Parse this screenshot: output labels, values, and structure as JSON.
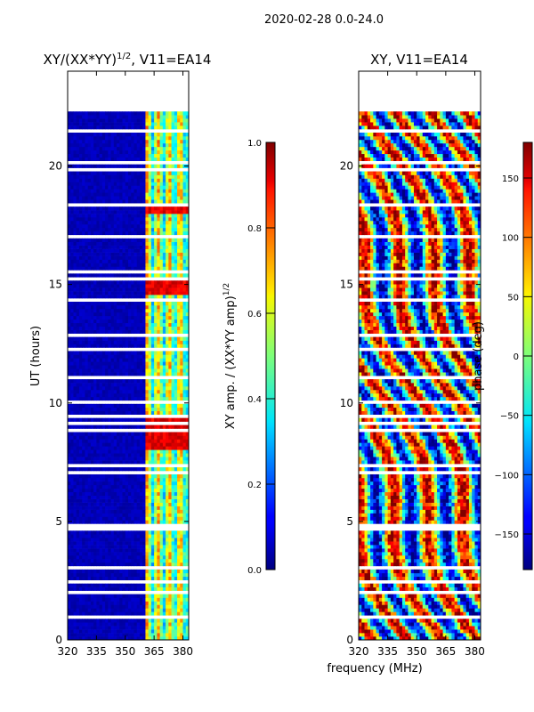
{
  "figure": {
    "suptitle": "2020-02-28 0.0-24.0",
    "shared_xlabel": "frequency (MHz)"
  },
  "chart_data": [
    {
      "type": "heatmap",
      "title_main": "XY/(XX*YY)",
      "title_sup": "1/2",
      "title_tail": ", V11=EA14",
      "xlabel": "",
      "ylabel": "UT (hours)",
      "xlim": [
        320,
        383
      ],
      "ylim": [
        0,
        24
      ],
      "xticks": [
        320,
        335,
        350,
        365,
        380
      ],
      "yticks": [
        0,
        5,
        10,
        15,
        20
      ],
      "data_time_range": [
        0,
        22.3
      ],
      "colorbar": {
        "label_main": "XY amp. / (XX*YY amp)",
        "label_sup": "1/2",
        "range": [
          0.0,
          1.0
        ],
        "ticks": [
          "0.0",
          "0.2",
          "0.4",
          "0.6",
          "0.8",
          "1.0"
        ],
        "colormap": "jet"
      }
    },
    {
      "type": "heatmap",
      "title": "XY, V11=EA14",
      "xlabel": "frequency (MHz)",
      "ylabel": "",
      "xlim": [
        320,
        383
      ],
      "ylim": [
        0,
        24
      ],
      "xticks": [
        320,
        335,
        350,
        365,
        380
      ],
      "yticks": [
        0,
        5,
        10,
        15,
        20
      ],
      "data_time_range": [
        0,
        22.3
      ],
      "colorbar": {
        "label": "phase (deg)",
        "range": [
          -180,
          180
        ],
        "ticks": [
          -150,
          -100,
          -50,
          0,
          50,
          100,
          150
        ],
        "colormap": "jet"
      }
    }
  ]
}
